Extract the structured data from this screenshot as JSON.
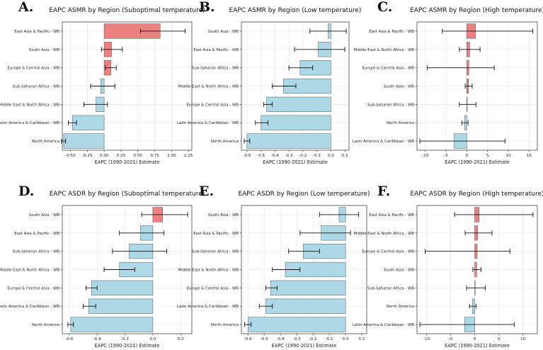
{
  "colors": {
    "negative": "#add8e6",
    "positive": "#f08080",
    "error": "#111111",
    "grid": "#e6e6e6"
  },
  "chart_data": [
    {
      "letter": "A.",
      "title": "EAPC ASMR by Region (Suboptimal temperature)",
      "type": "bar",
      "orientation": "horizontal",
      "xlabel": "EAPC (1990-2021) Estimate",
      "xlim": [
        -0.62,
        1.3
      ],
      "xticks": [
        -0.5,
        -0.25,
        0.0,
        0.25,
        0.5,
        0.75,
        1.0,
        1.25
      ],
      "xtick_labels": [
        "-0.50",
        "-0.25",
        "0.00",
        "0.25",
        "0.50",
        "0.75",
        "1.00",
        "1.25"
      ],
      "categories": [
        "East Asia & Pacific - WB",
        "South Asia - WB",
        "Europe & Central Asia - WB",
        "Sub-Saharan Africa - WB",
        "Middle East & North Africa - WB",
        "Latin America & Caribbean - WB",
        "North America"
      ],
      "values": [
        0.83,
        0.11,
        0.1,
        -0.05,
        -0.12,
        -0.47,
        -0.6
      ],
      "lower": [
        0.54,
        -0.04,
        0.02,
        -0.2,
        -0.3,
        -0.53,
        -0.63
      ],
      "upper": [
        1.2,
        0.27,
        0.18,
        0.16,
        0.05,
        -0.41,
        -0.57
      ]
    },
    {
      "letter": "B.",
      "title": "EAPC ASMR by Region (Low temperature)",
      "type": "bar",
      "orientation": "horizontal",
      "xlabel": "EAPC (1990-2021) Estimate",
      "xlim": [
        -0.64,
        0.13
      ],
      "xticks": [
        -0.6,
        -0.5,
        -0.4,
        -0.3,
        -0.2,
        -0.1,
        0.0,
        0.1
      ],
      "xtick_labels": [
        "-0.6",
        "-0.5",
        "-0.4",
        "-0.3",
        "-0.2",
        "-0.1",
        "0.0",
        "0.1"
      ],
      "categories": [
        "South Asia - WB",
        "East Asia & Pacific - WB",
        "Sub-Saharan Africa - WB",
        "Middle East & North Africa - WB",
        "Europe & Central Asia - WB",
        "Latin America & Caribbean - WB",
        "North America"
      ],
      "values": [
        -0.02,
        -0.09,
        -0.22,
        -0.34,
        -0.46,
        -0.5,
        -0.6
      ],
      "lower": [
        -0.15,
        -0.26,
        -0.3,
        -0.42,
        -0.48,
        -0.54,
        -0.62
      ],
      "upper": [
        0.11,
        0.1,
        -0.13,
        -0.25,
        -0.42,
        -0.45,
        -0.58
      ]
    },
    {
      "letter": "C.",
      "title": "EAPC ASMR by Region (High temperature)",
      "type": "bar",
      "orientation": "horizontal",
      "xlabel": "EAPC (1990-2021) Estimate",
      "xlim": [
        -12,
        17
      ],
      "xticks": [
        -10,
        -5,
        0,
        5,
        10,
        15
      ],
      "xtick_labels": [
        "-10",
        "-5",
        "0",
        "5",
        "10",
        "15"
      ],
      "categories": [
        "East Asia & Pacific - WB",
        "Middle East & North Africa - WB",
        "Europe & Central Asia - WB",
        "South Asia - WB",
        "Sub-Saharan Africa - WB",
        "North America",
        "Latin America & Caribbean - WB"
      ],
      "values": [
        2.1,
        0.7,
        0.5,
        0.4,
        0.1,
        -0.5,
        -3.1
      ],
      "lower": [
        -5.9,
        -1.8,
        -9.5,
        -0.4,
        -1.8,
        -1.2,
        -11.3
      ],
      "upper": [
        15.9,
        3.2,
        6.6,
        1.3,
        2.2,
        0.3,
        9.2
      ]
    },
    {
      "letter": "D.",
      "title": "EAPC ASDR by Region (Suboptimal temperature)",
      "type": "bar",
      "orientation": "horizontal",
      "xlabel": "EAPC (1990-2021) Estimate",
      "xlim": [
        -0.65,
        0.28
      ],
      "xticks": [
        -0.6,
        -0.4,
        -0.2,
        0.0,
        0.2
      ],
      "xtick_labels": [
        "-0.6",
        "-0.4",
        "-0.2",
        "0.0",
        "0.2"
      ],
      "categories": [
        "South Asia - WB",
        "East Asia & Pacific - WB",
        "Sub-Saharan Africa - WB",
        "Middle East & North Africa - WB",
        "Europe & Central Asia - WB",
        "Latin America & Caribbean - WB",
        "North America"
      ],
      "values": [
        0.07,
        -0.09,
        -0.17,
        -0.24,
        -0.44,
        -0.46,
        -0.59
      ],
      "lower": [
        -0.08,
        -0.24,
        -0.29,
        -0.35,
        -0.48,
        -0.5,
        -0.61
      ],
      "upper": [
        0.25,
        0.08,
        0.1,
        -0.13,
        -0.4,
        -0.41,
        -0.57
      ]
    },
    {
      "letter": "E.",
      "title": "EAPC ASDR by Region (Low temperature)",
      "type": "bar",
      "orientation": "horizontal",
      "xlabel": "EAPC (1990-2021) Estimate",
      "xlim": [
        -0.64,
        0.13
      ],
      "xticks": [
        -0.6,
        -0.5,
        -0.4,
        -0.3,
        -0.2,
        -0.1,
        0.0,
        0.1
      ],
      "xtick_labels": [
        "-0.6",
        "-0.5",
        "-0.4",
        "-0.3",
        "-0.2",
        "-0.1",
        "0.0",
        "0.1"
      ],
      "categories": [
        "South Asia - WB",
        "East Asia & Pacific - WB",
        "Sub-Saharan Africa - WB",
        "Middle East & North Africa - WB",
        "Europe & Central Asia - WB",
        "Latin America & Caribbean - WB",
        "North America"
      ],
      "values": [
        -0.04,
        -0.15,
        -0.26,
        -0.37,
        -0.46,
        -0.49,
        -0.6
      ],
      "lower": [
        -0.16,
        -0.28,
        -0.35,
        -0.45,
        -0.49,
        -0.53,
        -0.62
      ],
      "upper": [
        0.08,
        0.03,
        -0.16,
        -0.28,
        -0.42,
        -0.45,
        -0.58
      ]
    },
    {
      "letter": "F.",
      "title": "EAPC ASDR by Region (High temperature)",
      "type": "bar",
      "orientation": "horizontal",
      "xlabel": "EAPC (1990-2021) Estimate",
      "xlim": [
        -12,
        13
      ],
      "xticks": [
        -10,
        -5,
        0,
        5,
        10
      ],
      "xtick_labels": [
        "-10",
        "-5",
        "0",
        "5",
        "10"
      ],
      "categories": [
        "East Asia & Pacific - WB",
        "Middle East & North Africa - WB",
        "Europe & Central Asia - WB",
        "South Asia - WB",
        "Sub-Saharan Africa - WB",
        "North America",
        "Latin America & Caribbean - WB"
      ],
      "values": [
        0.9,
        0.6,
        0.5,
        0.4,
        0.05,
        -0.5,
        -2.1
      ],
      "lower": [
        -4.2,
        -2.0,
        -10.3,
        -0.4,
        -1.7,
        -1.1,
        -11.4
      ],
      "upper": [
        12.1,
        3.6,
        7.3,
        1.3,
        2.2,
        0.3,
        8.2
      ]
    }
  ]
}
